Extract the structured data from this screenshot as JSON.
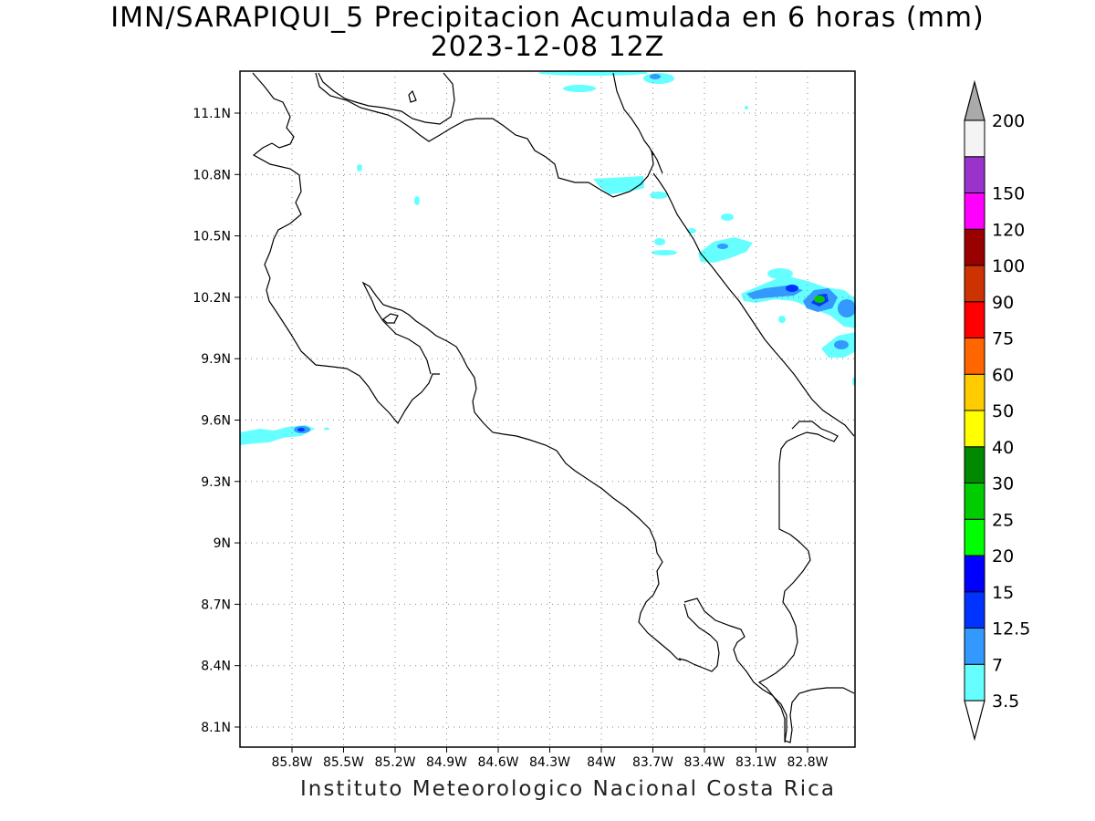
{
  "title": {
    "line1": "IMN/SARAPIQUI_5 Precipitacion Acumulada en 6 horas (mm)",
    "line2": "2023-12-08 12Z"
  },
  "map": {
    "x_ticks": [
      "85.8W",
      "85.5W",
      "85.2W",
      "84.9W",
      "84.6W",
      "84.3W",
      "84W",
      "83.7W",
      "83.4W",
      "83.1W",
      "82.8W"
    ],
    "y_ticks": [
      "11.1N",
      "10.8N",
      "10.5N",
      "10.2N",
      "9.9N",
      "9.6N",
      "9.3N",
      "9N",
      "8.7N",
      "8.4N",
      "8.1N"
    ],
    "grid": true
  },
  "legend": {
    "levels": [
      {
        "label": "3.5",
        "color": "#66ffff"
      },
      {
        "label": "7",
        "color": "#3399ff"
      },
      {
        "label": "12.5",
        "color": "#0033ff"
      },
      {
        "label": "15",
        "color": "#0000ff"
      },
      {
        "label": "20",
        "color": "#00ff00"
      },
      {
        "label": "25",
        "color": "#00cc00"
      },
      {
        "label": "30",
        "color": "#008800"
      },
      {
        "label": "40",
        "color": "#ffff00"
      },
      {
        "label": "50",
        "color": "#ffcc00"
      },
      {
        "label": "60",
        "color": "#ff6600"
      },
      {
        "label": "75",
        "color": "#ff0000"
      },
      {
        "label": "90",
        "color": "#cc3300"
      },
      {
        "label": "100",
        "color": "#990000"
      },
      {
        "label": "120",
        "color": "#ff00ff"
      },
      {
        "label": "150",
        "color": "#9933cc"
      },
      {
        "label": "200",
        "color": "#f4f4f4"
      }
    ],
    "top_arrow_color": "#aaaaaa",
    "bottom_arrow_color": "#ffffff"
  },
  "footer": {
    "text": "Instituto Meteorologico Nacional Costa Rica"
  }
}
